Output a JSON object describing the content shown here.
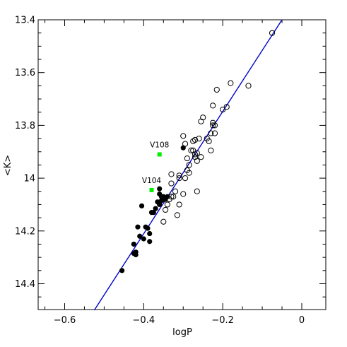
{
  "chart_data": {
    "type": "scatter",
    "xlabel": "logP",
    "ylabel": "<K>",
    "xlim": [
      -0.7,
      0.0
    ],
    "ylim": [
      13.4,
      14.5
    ],
    "y_inverted": true,
    "grid": false,
    "xticks": [
      "−0.6",
      "−0.4",
      "−0.2",
      "0"
    ],
    "xtick_values": [
      -0.6,
      -0.4,
      -0.2,
      0.0
    ],
    "yticks": [
      "13.4",
      "13.6",
      "13.8",
      "14",
      "14.2",
      "14.4"
    ],
    "ytick_values": [
      13.4,
      13.6,
      13.8,
      14.0,
      14.2,
      14.4
    ],
    "colors": {
      "fit_line": "#0000cc",
      "highlight": "#00ee00",
      "points": "#000000"
    },
    "fit_line": {
      "x": [
        -0.525,
        -0.05
      ],
      "y": [
        14.5,
        13.4
      ]
    },
    "series": [
      {
        "marker": "filled-circle",
        "x": [
          -0.455,
          -0.425,
          -0.425,
          -0.42,
          -0.42,
          -0.415,
          -0.41,
          -0.405,
          -0.4,
          -0.395,
          -0.39,
          -0.385,
          -0.38,
          -0.375,
          -0.37,
          -0.365,
          -0.36,
          -0.36,
          -0.355,
          -0.355,
          -0.35,
          -0.35,
          -0.345,
          -0.34,
          -0.3,
          -0.36,
          -0.385
        ],
        "y": [
          14.35,
          14.25,
          14.285,
          14.29,
          14.28,
          14.185,
          14.22,
          14.105,
          14.23,
          14.185,
          14.19,
          14.24,
          14.13,
          14.13,
          14.115,
          14.09,
          14.1,
          14.04,
          14.07,
          14.085,
          14.08,
          14.07,
          14.08,
          14.07,
          13.885,
          14.06,
          14.21
        ]
      },
      {
        "marker": "open-circle",
        "x": [
          -0.075,
          -0.135,
          -0.18,
          -0.19,
          -0.2,
          -0.215,
          -0.22,
          -0.225,
          -0.22,
          -0.225,
          -0.225,
          -0.23,
          -0.235,
          -0.25,
          -0.255,
          -0.255,
          -0.26,
          -0.265,
          -0.265,
          -0.27,
          -0.27,
          -0.275,
          -0.275,
          -0.28,
          -0.285,
          -0.285,
          -0.29,
          -0.29,
          -0.295,
          -0.295,
          -0.3,
          -0.3,
          -0.31,
          -0.31,
          -0.315,
          -0.32,
          -0.325,
          -0.33,
          -0.33,
          -0.335,
          -0.34,
          -0.345,
          -0.35,
          -0.35,
          -0.265,
          -0.23,
          -0.24,
          -0.31,
          -0.33,
          -0.27
        ],
        "y": [
          13.45,
          13.65,
          13.64,
          13.73,
          13.74,
          13.665,
          13.8,
          13.8,
          13.83,
          13.725,
          13.79,
          13.895,
          13.86,
          13.77,
          13.785,
          13.92,
          13.85,
          13.935,
          13.905,
          13.855,
          13.92,
          13.86,
          13.895,
          13.895,
          13.95,
          13.98,
          13.925,
          13.97,
          13.87,
          14.0,
          13.84,
          14.06,
          14.0,
          14.1,
          14.14,
          14.05,
          14.07,
          14.02,
          14.07,
          14.08,
          14.1,
          14.12,
          14.165,
          14.08,
          14.05,
          13.83,
          13.85,
          13.99,
          13.985,
          13.91
        ]
      },
      {
        "marker": "green-square",
        "x": [
          -0.36,
          -0.38
        ],
        "y": [
          13.91,
          14.045
        ]
      }
    ],
    "annotations": [
      {
        "text": "V108",
        "x": -0.36,
        "y": 13.91
      },
      {
        "text": "V104",
        "x": -0.38,
        "y": 14.045
      }
    ]
  }
}
